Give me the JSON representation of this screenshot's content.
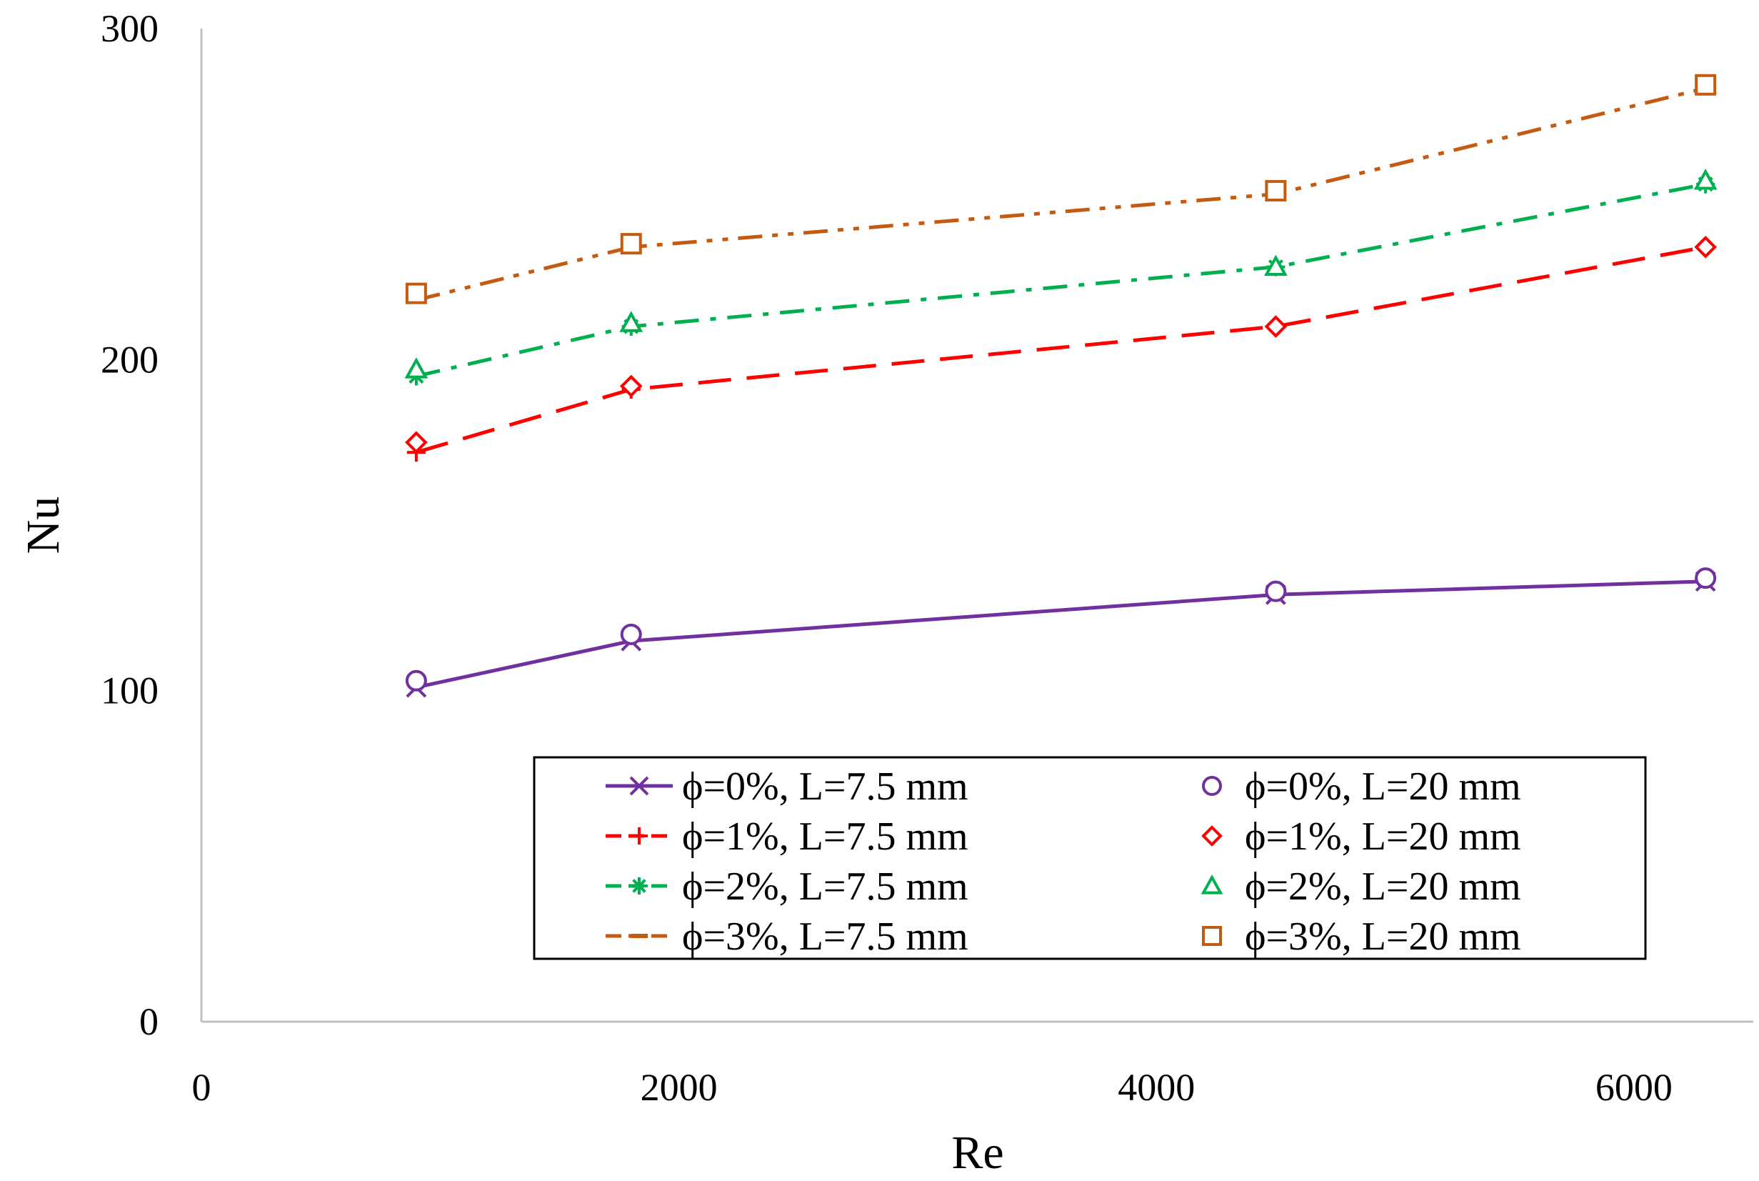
{
  "chart_data": {
    "type": "line",
    "title": "",
    "xlabel": "Re",
    "ylabel": "Nu",
    "xlim": [
      0,
      6500
    ],
    "ylim": [
      0,
      300
    ],
    "xticks": [
      0,
      2000,
      4000,
      6000
    ],
    "yticks": [
      0,
      100,
      200,
      300
    ],
    "xtick_labels": [
      "0",
      "2000",
      "4000",
      "6000"
    ],
    "ytick_labels": [
      "0",
      "100",
      "200",
      "300"
    ],
    "grid": false,
    "legend_position": "bottom-right",
    "x": [
      900,
      1800,
      4500,
      6300
    ],
    "series": [
      {
        "name": "ϕ=0%, L=7.5 mm",
        "values": [
          101,
          115,
          129,
          133
        ],
        "color": "#7030a0",
        "marker": "x",
        "line": "solid",
        "legend_sample": "line-marker"
      },
      {
        "name": "ϕ=0%, L=20 mm",
        "values": [
          103,
          117,
          130,
          134
        ],
        "color": "#7030a0",
        "marker": "circle",
        "line": "none",
        "legend_sample": "marker"
      },
      {
        "name": "ϕ=1%, L=7.5 mm",
        "values": [
          172,
          191,
          210,
          234
        ],
        "color": "#ff0000",
        "marker": "plus",
        "line": "dash",
        "legend_sample": "line-marker"
      },
      {
        "name": "ϕ=1%, L=20 mm",
        "values": [
          175,
          192,
          210,
          234
        ],
        "color": "#ff0000",
        "marker": "diamond",
        "line": "none",
        "legend_sample": "marker"
      },
      {
        "name": "ϕ=2%, L=7.5 mm",
        "values": [
          195,
          210,
          228,
          253
        ],
        "color": "#00b050",
        "marker": "asterisk",
        "line": "dashdot",
        "legend_sample": "line-marker"
      },
      {
        "name": "ϕ=2%, L=20 mm",
        "values": [
          197,
          211,
          228,
          254
        ],
        "color": "#00b050",
        "marker": "triangle",
        "line": "none",
        "legend_sample": "marker"
      },
      {
        "name": "ϕ=3%, L=7.5 mm",
        "values": [
          218,
          234,
          250,
          282
        ],
        "color": "#c55a11",
        "marker": "dash",
        "line": "dashdotdot",
        "legend_sample": "line-marker"
      },
      {
        "name": "ϕ=3%, L=20 mm",
        "values": [
          220,
          235,
          251,
          283
        ],
        "color": "#c55a11",
        "marker": "square",
        "line": "none",
        "legend_sample": "marker"
      }
    ]
  }
}
